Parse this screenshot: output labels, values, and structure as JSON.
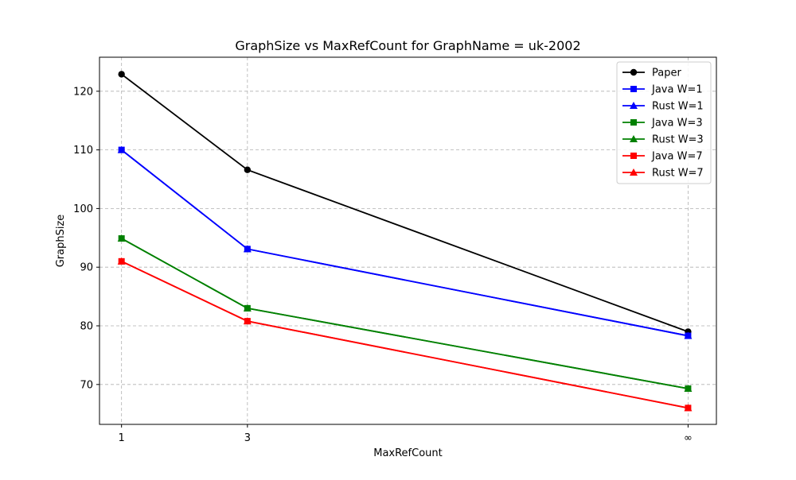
{
  "chart_data": {
    "type": "line",
    "title": "GraphSize vs MaxRefCount for GraphName = uk-2002",
    "xlabel": "MaxRefCount",
    "ylabel": "GraphSize",
    "x_categories": [
      "1",
      "3",
      "∞"
    ],
    "x_positions": [
      1,
      3,
      10
    ],
    "xlim": [
      0.65,
      10.45
    ],
    "ylim": [
      63.2,
      125.8
    ],
    "yticks": [
      70,
      80,
      90,
      100,
      110,
      120
    ],
    "grid": true,
    "legend_position": "top-right",
    "series": [
      {
        "name": "Paper",
        "color": "#000000",
        "marker": "circle",
        "values": [
          122.9,
          106.6,
          79.0
        ]
      },
      {
        "name": "Java W=1",
        "color": "#0000ff",
        "marker": "square",
        "values": [
          110.0,
          93.1,
          78.3
        ]
      },
      {
        "name": "Rust W=1",
        "color": "#0000ff",
        "marker": "triangle",
        "values": [
          110.0,
          93.1,
          78.3
        ]
      },
      {
        "name": "Java W=3",
        "color": "#008000",
        "marker": "square",
        "values": [
          94.9,
          83.0,
          69.3
        ]
      },
      {
        "name": "Rust W=3",
        "color": "#008000",
        "marker": "triangle",
        "values": [
          94.9,
          83.0,
          69.3
        ]
      },
      {
        "name": "Java W=7",
        "color": "#ff0000",
        "marker": "square",
        "values": [
          91.0,
          80.8,
          66.0
        ]
      },
      {
        "name": "Rust W=7",
        "color": "#ff0000",
        "marker": "triangle",
        "values": [
          91.0,
          80.8,
          66.0
        ]
      }
    ]
  }
}
